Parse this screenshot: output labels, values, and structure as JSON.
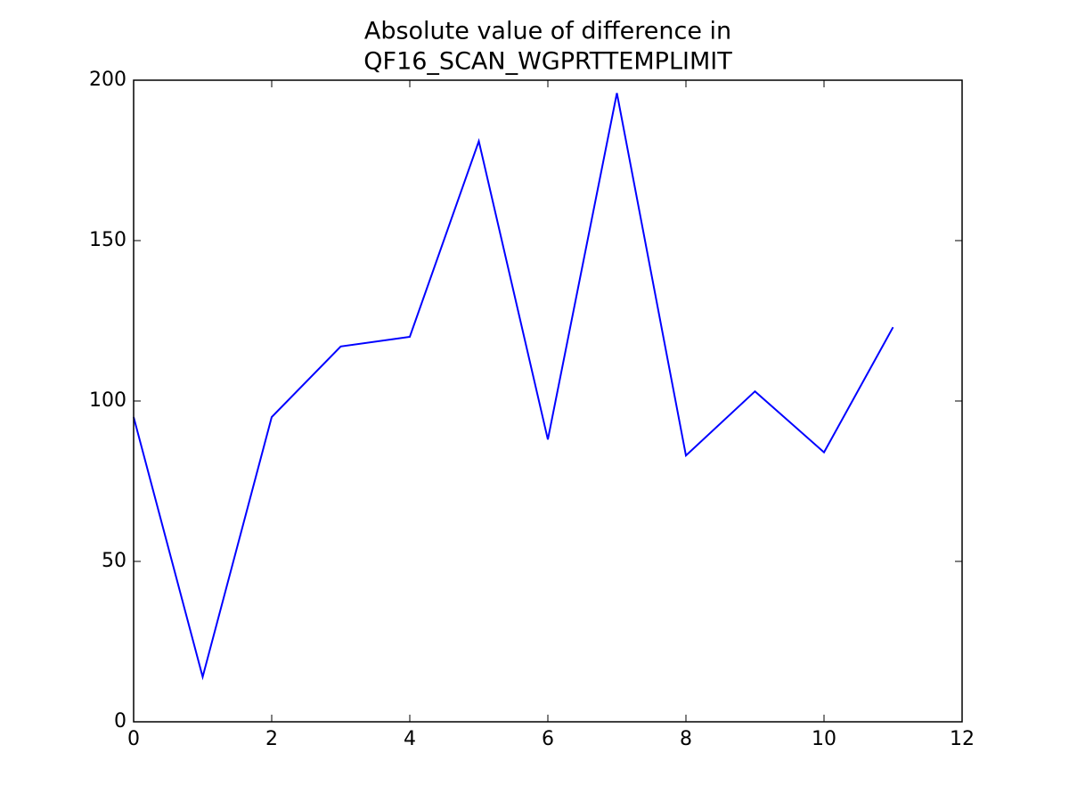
{
  "chart_data": {
    "type": "line",
    "title": [
      "Absolute value of difference in",
      "QF16_SCAN_WGPRTTEMPLIMIT"
    ],
    "x": [
      0,
      1,
      2,
      3,
      4,
      5,
      6,
      7,
      8,
      9,
      10,
      11
    ],
    "values": [
      95,
      14,
      95,
      117,
      120,
      181,
      88,
      196,
      83,
      103,
      84,
      123
    ],
    "color": "#0000ff",
    "xlim": [
      0,
      12
    ],
    "xticks": [
      0,
      2,
      4,
      6,
      8,
      10,
      12
    ],
    "ylim": [
      0,
      200
    ],
    "yticks": [
      0,
      50,
      100,
      150,
      200
    ],
    "grid": false
  }
}
